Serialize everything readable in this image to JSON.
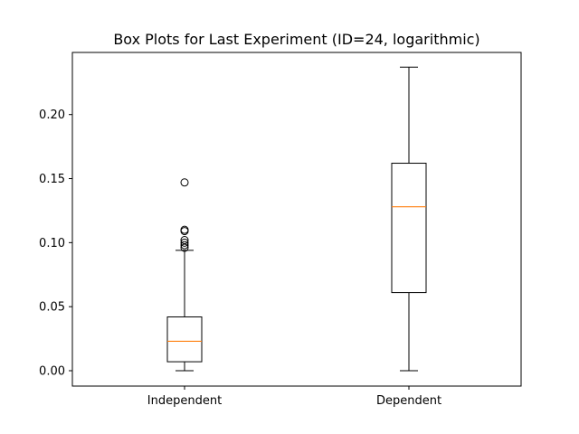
{
  "chart_data": {
    "type": "box",
    "title": "Box Plots for Last Experiment (ID=24, logarithmic)",
    "xlabel": "",
    "ylabel": "",
    "categories": [
      "Independent",
      "Dependent"
    ],
    "ylim": [
      -0.012,
      0.2485
    ],
    "yticks": [
      0.0,
      0.05,
      0.1,
      0.15,
      0.2
    ],
    "ytick_labels": [
      "0.00",
      "0.05",
      "0.10",
      "0.15",
      "0.20"
    ],
    "grid": false,
    "boxes": [
      {
        "name": "Independent",
        "whisker_low": 0.0,
        "q1": 0.007,
        "median": 0.023,
        "q3": 0.042,
        "whisker_high": 0.094,
        "outliers": [
          0.096,
          0.098,
          0.1,
          0.102,
          0.109,
          0.11,
          0.147
        ]
      },
      {
        "name": "Dependent",
        "whisker_low": 0.0,
        "q1": 0.061,
        "median": 0.128,
        "q3": 0.162,
        "whisker_high": 0.237,
        "outliers": []
      }
    ],
    "colors": {
      "box": "#000000",
      "median": "#ff7f0e",
      "outlier": "#000000"
    }
  }
}
